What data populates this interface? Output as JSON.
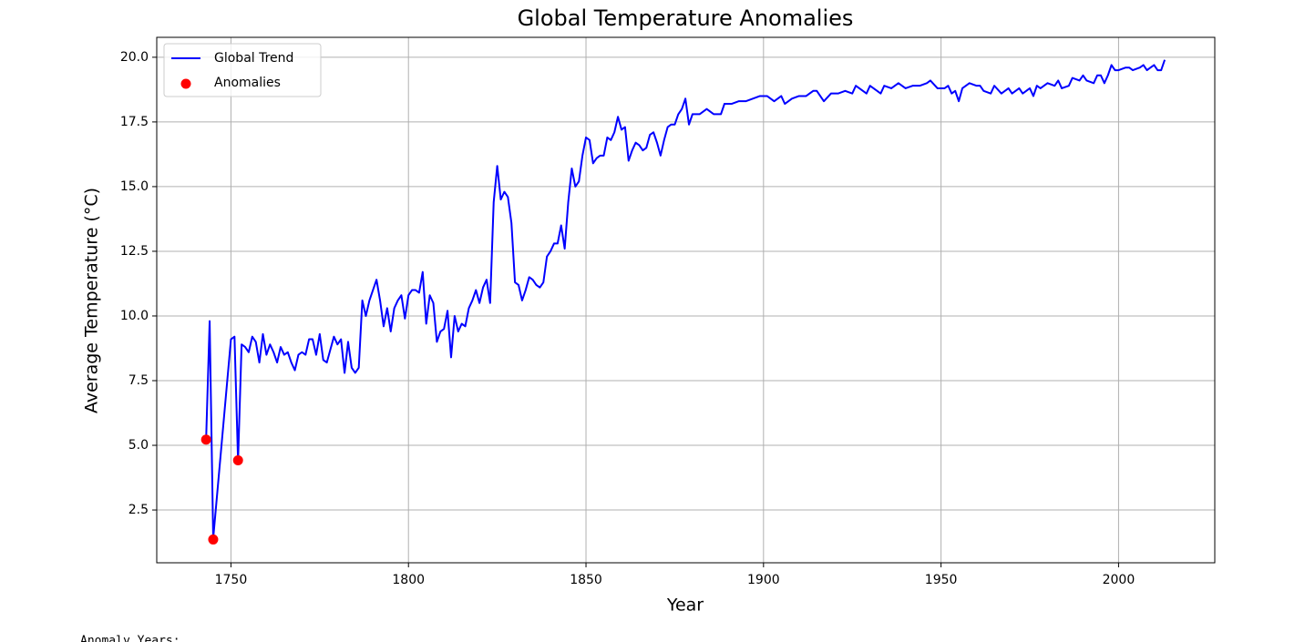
{
  "chart_data": {
    "type": "line",
    "title": "Global Temperature Anomalies",
    "x_label": "Year",
    "y_label": "Average Temperature (°C)",
    "xlim": [
      1729.1,
      2027.1
    ],
    "ylim": [
      0.46,
      20.77
    ],
    "xticks": [
      1750,
      1800,
      1850,
      1900,
      1950,
      2000
    ],
    "yticks": [
      {
        "value": 2.5,
        "label": "2.5"
      },
      {
        "value": 5,
        "label": "5.0"
      },
      {
        "value": 7.5,
        "label": "7.5"
      },
      {
        "value": 10,
        "label": "10.0"
      },
      {
        "value": 12.5,
        "label": "12.5"
      },
      {
        "value": 15,
        "label": "15.0"
      },
      {
        "value": 17.5,
        "label": "17.5"
      },
      {
        "value": 20,
        "label": "20.0"
      }
    ],
    "grid": true,
    "legend": "upper-left",
    "series": [
      {
        "name": "Global Trend",
        "type": "line",
        "color": "#0000ff",
        "x": [
          1743,
          1744,
          1745,
          1750,
          1751,
          1752,
          1753,
          1754,
          1755,
          1756,
          1757,
          1758,
          1759,
          1760,
          1761,
          1762,
          1763,
          1764,
          1765,
          1766,
          1767,
          1768,
          1769,
          1770,
          1771,
          1772,
          1773,
          1774,
          1775,
          1776,
          1777,
          1778,
          1779,
          1780,
          1781,
          1782,
          1783,
          1784,
          1785,
          1786,
          1787,
          1788,
          1789,
          1790,
          1791,
          1792,
          1793,
          1794,
          1795,
          1796,
          1797,
          1798,
          1799,
          1800,
          1801,
          1802,
          1803,
          1804,
          1805,
          1806,
          1807,
          1808,
          1809,
          1810,
          1811,
          1812,
          1813,
          1814,
          1815,
          1816,
          1817,
          1818,
          1819,
          1820,
          1821,
          1822,
          1823,
          1824,
          1825,
          1826,
          1827,
          1828,
          1829,
          1830,
          1831,
          1832,
          1833,
          1834,
          1835,
          1836,
          1837,
          1838,
          1839,
          1840,
          1841,
          1842,
          1843,
          1844,
          1845,
          1846,
          1847,
          1848,
          1849,
          1850,
          1851,
          1852,
          1853,
          1854,
          1855,
          1856,
          1857,
          1858,
          1859,
          1860,
          1861,
          1862,
          1863,
          1864,
          1865,
          1866,
          1867,
          1868,
          1869,
          1870,
          1871,
          1872,
          1873,
          1874,
          1875,
          1876,
          1877,
          1878,
          1879,
          1880,
          1882,
          1884,
          1886,
          1888,
          1889,
          1891,
          1893,
          1895,
          1897,
          1899,
          1901,
          1903,
          1905,
          1906,
          1908,
          1910,
          1912,
          1914,
          1915,
          1917,
          1919,
          1921,
          1923,
          1925,
          1926,
          1928,
          1929,
          1930,
          1932,
          1933,
          1934,
          1936,
          1938,
          1940,
          1942,
          1944,
          1946,
          1947,
          1949,
          1951,
          1952,
          1953,
          1954,
          1955,
          1956,
          1958,
          1960,
          1961,
          1962,
          1964,
          1965,
          1967,
          1969,
          1970,
          1972,
          1973,
          1975,
          1976,
          1977,
          1978,
          1980,
          1982,
          1983,
          1984,
          1986,
          1987,
          1989,
          1990,
          1991,
          1993,
          1994,
          1995,
          1996,
          1997,
          1998,
          1999,
          2000,
          2002,
          2003,
          2004,
          2006,
          2007,
          2008,
          2009,
          2010,
          2011,
          2012,
          2013
        ],
        "values": [
          5.2,
          9.8,
          1.4,
          9.1,
          9.2,
          4.4,
          8.9,
          8.8,
          8.6,
          9.2,
          9.0,
          8.2,
          9.3,
          8.5,
          8.9,
          8.6,
          8.2,
          8.8,
          8.5,
          8.6,
          8.2,
          7.9,
          8.5,
          8.6,
          8.5,
          9.1,
          9.1,
          8.5,
          9.3,
          8.3,
          8.2,
          8.7,
          9.2,
          8.9,
          9.1,
          7.8,
          9.0,
          8.0,
          7.8,
          8.0,
          10.6,
          10.0,
          10.6,
          11.0,
          11.4,
          10.6,
          9.6,
          10.3,
          9.4,
          10.3,
          10.6,
          10.8,
          9.9,
          10.8,
          11.0,
          11.0,
          10.9,
          11.7,
          9.7,
          10.8,
          10.5,
          9.0,
          9.4,
          9.5,
          10.2,
          8.4,
          10.0,
          9.4,
          9.7,
          9.6,
          10.3,
          10.6,
          11.0,
          10.5,
          11.1,
          11.4,
          10.5,
          14.4,
          15.8,
          14.5,
          14.8,
          14.6,
          13.6,
          11.3,
          11.2,
          10.6,
          11.0,
          11.5,
          11.4,
          11.2,
          11.1,
          11.3,
          12.3,
          12.5,
          12.8,
          12.8,
          13.5,
          12.6,
          14.4,
          15.7,
          15.0,
          15.2,
          16.2,
          16.9,
          16.8,
          15.9,
          16.1,
          16.2,
          16.2,
          16.9,
          16.8,
          17.1,
          17.7,
          17.2,
          17.3,
          16.0,
          16.4,
          16.7,
          16.6,
          16.4,
          16.5,
          17.0,
          17.1,
          16.7,
          16.2,
          16.8,
          17.3,
          17.4,
          17.4,
          17.8,
          18.0,
          18.4,
          17.4,
          17.8,
          17.8,
          18.0,
          17.8,
          17.8,
          18.2,
          18.2,
          18.3,
          18.3,
          18.4,
          18.5,
          18.5,
          18.3,
          18.5,
          18.2,
          18.4,
          18.5,
          18.5,
          18.7,
          18.7,
          18.3,
          18.6,
          18.6,
          18.7,
          18.6,
          18.9,
          18.7,
          18.6,
          18.9,
          18.7,
          18.6,
          18.9,
          18.8,
          19.0,
          18.8,
          18.9,
          18.9,
          19.0,
          19.1,
          18.8,
          18.8,
          18.9,
          18.6,
          18.7,
          18.3,
          18.8,
          19.0,
          18.9,
          18.9,
          18.7,
          18.6,
          18.9,
          18.6,
          18.8,
          18.6,
          18.8,
          18.6,
          18.8,
          18.5,
          18.9,
          18.8,
          19.0,
          18.9,
          19.1,
          18.8,
          18.9,
          19.2,
          19.1,
          19.3,
          19.1,
          19.0,
          19.3,
          19.3,
          19.0,
          19.3,
          19.7,
          19.5,
          19.5,
          19.6,
          19.6,
          19.5,
          19.6,
          19.7,
          19.5,
          19.6,
          19.7,
          19.5,
          19.5,
          19.9
        ]
      },
      {
        "name": "Anomalies",
        "type": "scatter",
        "color": "#ff0000",
        "x": [
          1743,
          1745,
          1752
        ],
        "values": [
          5.22,
          1.36,
          4.42
        ]
      }
    ]
  },
  "output_text": "Anomaly Years:"
}
